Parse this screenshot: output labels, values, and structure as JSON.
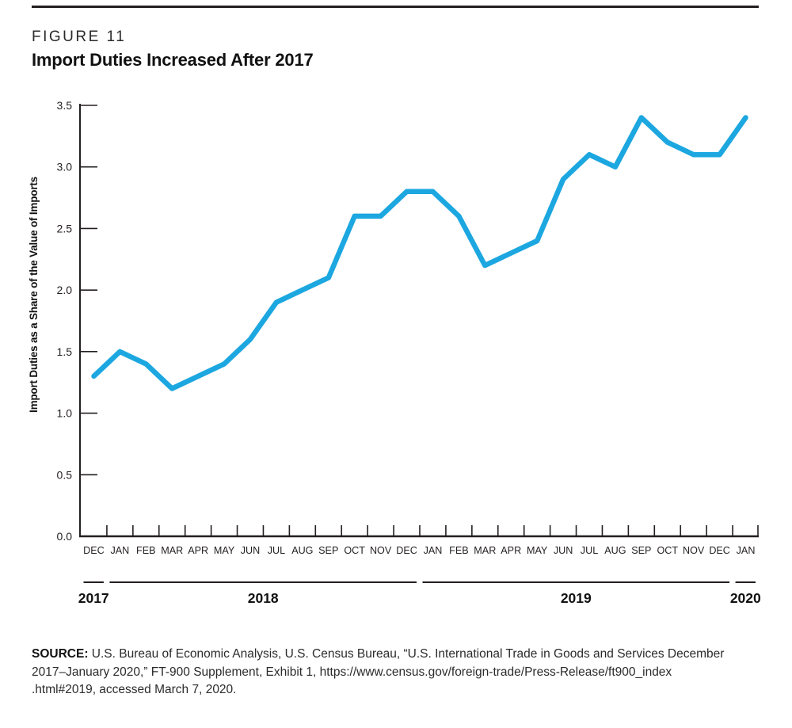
{
  "figure": {
    "label": "FIGURE 11",
    "title": "Import Duties Increased After 2017"
  },
  "chart_data": {
    "type": "line",
    "title": "Import Duties Increased After 2017",
    "x": [
      "DEC",
      "JAN",
      "FEB",
      "MAR",
      "APR",
      "MAY",
      "JUN",
      "JUL",
      "AUG",
      "SEP",
      "OCT",
      "NOV",
      "DEC",
      "JAN",
      "FEB",
      "MAR",
      "APR",
      "MAY",
      "JUN",
      "JUL",
      "AUG",
      "SEP",
      "OCT",
      "NOV",
      "DEC",
      "JAN"
    ],
    "year_groups": [
      {
        "label": "2017",
        "start": 0,
        "span": 1
      },
      {
        "label": "2018",
        "start": 1,
        "span": 12
      },
      {
        "label": "2019",
        "start": 13,
        "span": 12
      },
      {
        "label": "2020",
        "start": 25,
        "span": 1
      }
    ],
    "series": [
      {
        "name": "Import duties as a share of the value of imports",
        "values": [
          1.3,
          1.5,
          1.4,
          1.2,
          1.3,
          1.4,
          1.6,
          1.9,
          2.0,
          2.1,
          2.6,
          2.6,
          2.8,
          2.8,
          2.6,
          2.2,
          2.3,
          2.4,
          2.9,
          3.1,
          3.0,
          3.4,
          3.2,
          3.1,
          3.1,
          3.4
        ]
      }
    ],
    "xlabel": "",
    "ylabel": "Import Duties as a Share of the Value of Imports",
    "ylim": [
      0,
      3.5
    ],
    "ytick_step": 0.5,
    "grid": false,
    "legend": "none",
    "line_color": "#1CA7E0",
    "axis_color": "#231F20"
  },
  "source": {
    "label": "SOURCE:",
    "lines": [
      "U.S. Bureau of Economic Analysis, U.S. Census Bureau, “U.S. International Trade in Goods and Services December",
      "2017–January 2020,” FT-900 Supplement, Exhibit 1, https://www.census.gov/foreign-trade/Press-Release/ft900_index",
      ".html#2019, accessed March 7, 2020."
    ]
  }
}
